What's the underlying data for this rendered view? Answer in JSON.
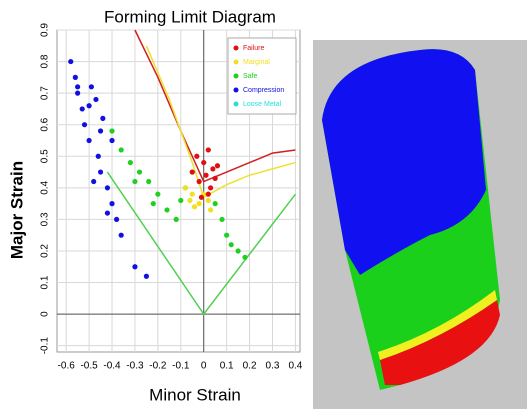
{
  "chart_data": {
    "type": "scatter",
    "title": "Forming Limit Diagram",
    "x_label": "Minor Strain",
    "y_label": "Major Strain",
    "xlim": [
      -0.64,
      0.42
    ],
    "ylim": [
      -0.12,
      0.9
    ],
    "xticks": [
      -0.6,
      -0.5,
      -0.4,
      -0.3,
      -0.2,
      -0.1,
      0,
      0.1,
      0.2,
      0.3,
      0.4
    ],
    "yticks": [
      -0.1,
      0,
      0.1,
      0.2,
      0.3,
      0.4,
      0.5,
      0.6,
      0.7,
      0.8,
      0.9
    ],
    "grid": true,
    "legend": "top-right",
    "series": [
      {
        "name": "Failure",
        "color": "#e01010",
        "x": [
          -0.05,
          -0.03,
          -0.02,
          0,
          0.01,
          0.02,
          0.03,
          0.04,
          0.05,
          0.02,
          -0.01,
          0.06
        ],
        "values": [
          0.45,
          0.5,
          0.42,
          0.48,
          0.44,
          0.52,
          0.4,
          0.46,
          0.43,
          0.38,
          0.37,
          0.47
        ]
      },
      {
        "name": "Marginal",
        "color": "#f0e020",
        "x": [
          -0.08,
          -0.06,
          -0.04,
          -0.02,
          0,
          0.02,
          -0.05,
          0.03
        ],
        "values": [
          0.4,
          0.36,
          0.34,
          0.35,
          0.38,
          0.36,
          0.38,
          0.33
        ]
      },
      {
        "name": "Safe",
        "color": "#20d020",
        "x": [
          -0.4,
          -0.36,
          -0.32,
          -0.28,
          -0.24,
          -0.2,
          -0.16,
          -0.12,
          -0.1,
          -0.08,
          -0.05,
          0.05,
          0.08,
          0.1,
          0.12,
          0.15,
          0.18,
          -0.3,
          -0.22
        ],
        "values": [
          0.58,
          0.52,
          0.48,
          0.45,
          0.42,
          0.38,
          0.33,
          0.3,
          0.36,
          0.4,
          0.45,
          0.35,
          0.3,
          0.25,
          0.22,
          0.2,
          0.18,
          0.42,
          0.35
        ]
      },
      {
        "name": "Compression",
        "color": "#1010e0",
        "x": [
          -0.58,
          -0.56,
          -0.55,
          -0.53,
          -0.52,
          -0.5,
          -0.49,
          -0.47,
          -0.46,
          -0.45,
          -0.44,
          -0.42,
          -0.4,
          -0.38,
          -0.36,
          -0.5,
          -0.45,
          -0.4,
          -0.55,
          -0.48,
          -0.42,
          -0.3,
          -0.25
        ],
        "values": [
          0.8,
          0.75,
          0.7,
          0.65,
          0.6,
          0.55,
          0.72,
          0.68,
          0.5,
          0.45,
          0.62,
          0.4,
          0.35,
          0.3,
          0.25,
          0.66,
          0.58,
          0.55,
          0.72,
          0.42,
          0.32,
          0.15,
          0.12
        ]
      },
      {
        "name": "Loose Metal",
        "color": "#20e0e0",
        "x": [],
        "values": []
      }
    ],
    "curves": [
      {
        "color": "#d02020",
        "x": [
          -0.3,
          -0.2,
          -0.1,
          0,
          0.1,
          0.2,
          0.3,
          0.4
        ],
        "values": [
          0.9,
          0.75,
          0.58,
          0.42,
          0.45,
          0.48,
          0.51,
          0.52
        ]
      },
      {
        "color": "#f0e030",
        "x": [
          -0.25,
          -0.15,
          -0.05,
          0,
          0.1,
          0.2,
          0.3,
          0.4
        ],
        "values": [
          0.85,
          0.68,
          0.48,
          0.37,
          0.41,
          0.44,
          0.46,
          0.48
        ]
      },
      {
        "color": "#50d050",
        "x": [
          -0.42,
          0,
          0.4
        ],
        "values": [
          0.45,
          0,
          0.38
        ]
      }
    ]
  }
}
